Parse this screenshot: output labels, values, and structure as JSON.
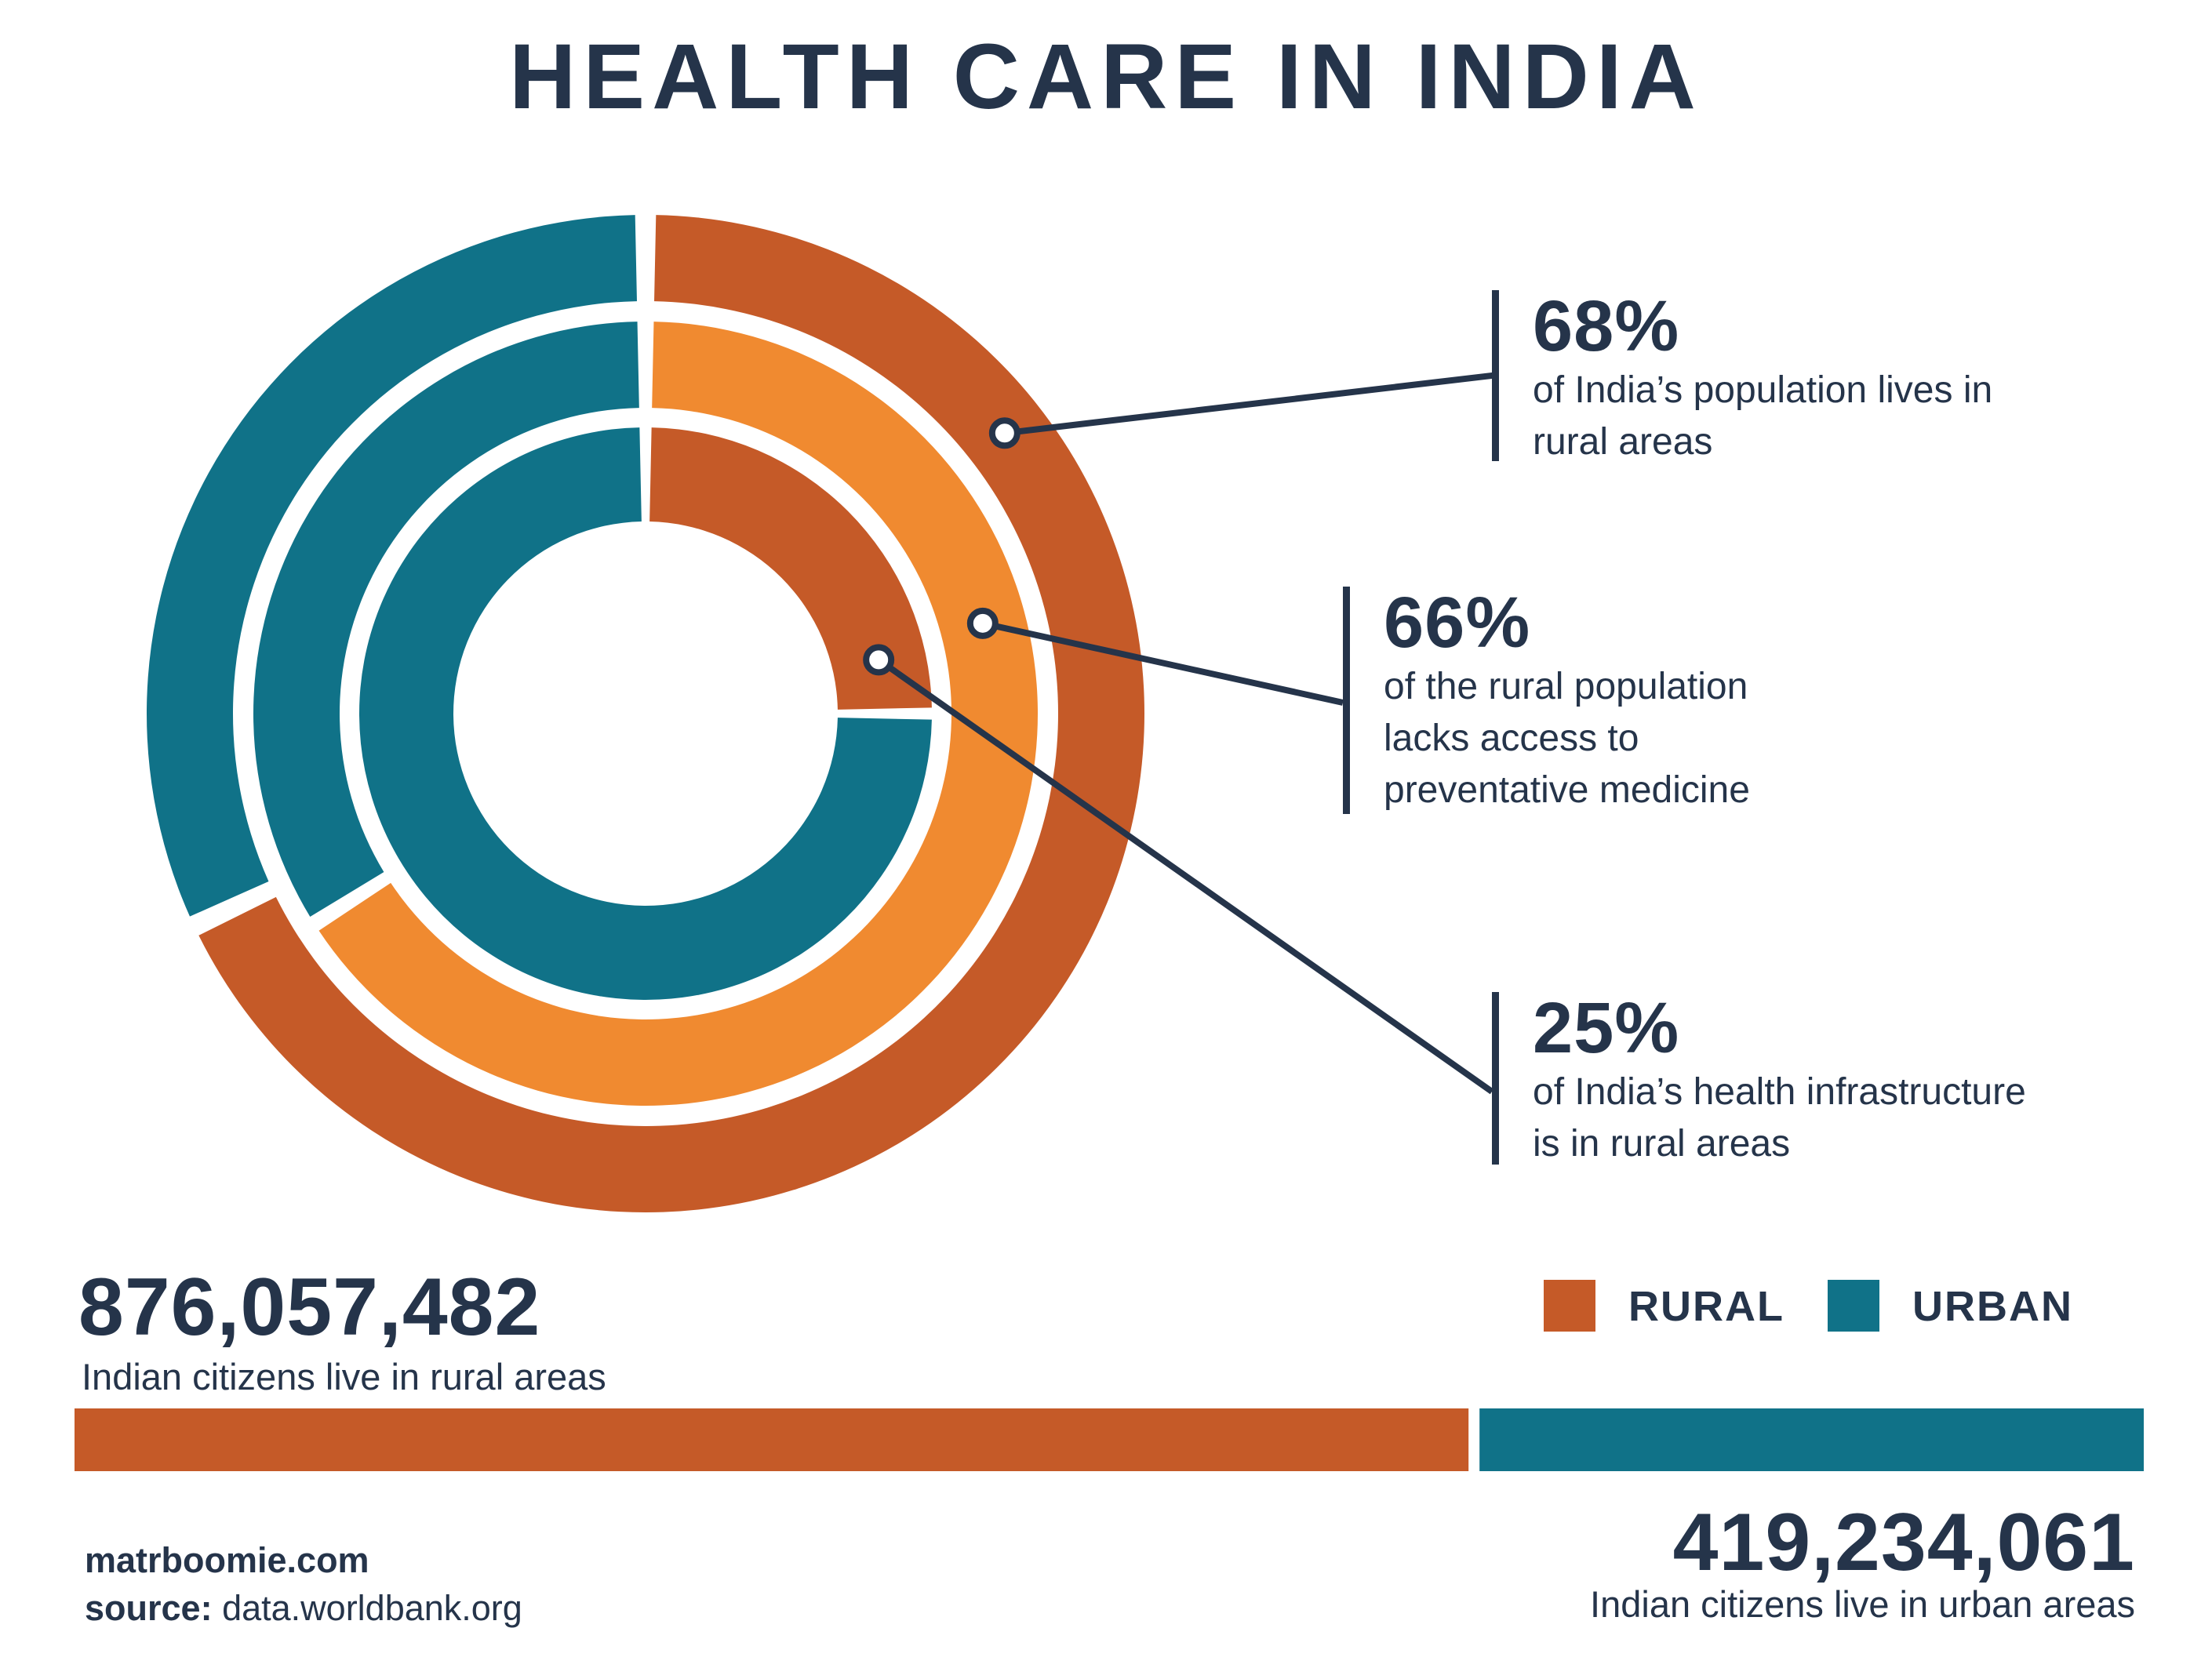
{
  "title": "HEALTH CARE IN INDIA",
  "colors": {
    "rural": "#c55a28",
    "rural_light": "#f08a30",
    "urban": "#107288",
    "text": "#25344a"
  },
  "chart_data": [
    {
      "type": "donut",
      "rings": [
        {
          "name": "outer",
          "values": [
            68,
            32
          ],
          "labels": [
            "rural",
            "urban"
          ]
        },
        {
          "name": "middle",
          "values": [
            66,
            34
          ],
          "labels": [
            "rural (lacks access)",
            "urban"
          ]
        },
        {
          "name": "inner",
          "values": [
            25,
            75
          ],
          "labels": [
            "rural",
            "urban"
          ]
        }
      ],
      "annotations": [
        {
          "value": "68%",
          "text": "of India’s population lives in rural areas",
          "ring": "outer"
        },
        {
          "value": "66%",
          "text": "of the rural population lacks access to preventative medicine",
          "ring": "middle"
        },
        {
          "value": "25%",
          "text": "of India’s health infrastructure is in rural areas",
          "ring": "inner"
        }
      ]
    },
    {
      "type": "bar",
      "orientation": "horizontal-stacked",
      "categories": [
        "RURAL",
        "URBAN"
      ],
      "values": [
        876057482,
        419234061
      ]
    }
  ],
  "callouts": [
    {
      "pct": "68%",
      "line1": "of India’s population lives in",
      "line2": "rural areas",
      "line3": ""
    },
    {
      "pct": "66%",
      "line1": "of the rural population",
      "line2": "lacks access to",
      "line3": "preventative medicine"
    },
    {
      "pct": "25%",
      "line1": "of India’s health infrastructure",
      "line2": "is in rural areas",
      "line3": ""
    }
  ],
  "population": {
    "rural_total": "876,057,482",
    "rural_caption": "Indian citizens live in rural areas",
    "urban_total": "419,234,061",
    "urban_caption": "Indian citizens live in urban areas"
  },
  "legend": {
    "rural_label": "RURAL",
    "urban_label": "URBAN"
  },
  "footer": {
    "site": "matrboomie.com",
    "source_label": "source:",
    "source_value": "data.worldbank.org"
  }
}
